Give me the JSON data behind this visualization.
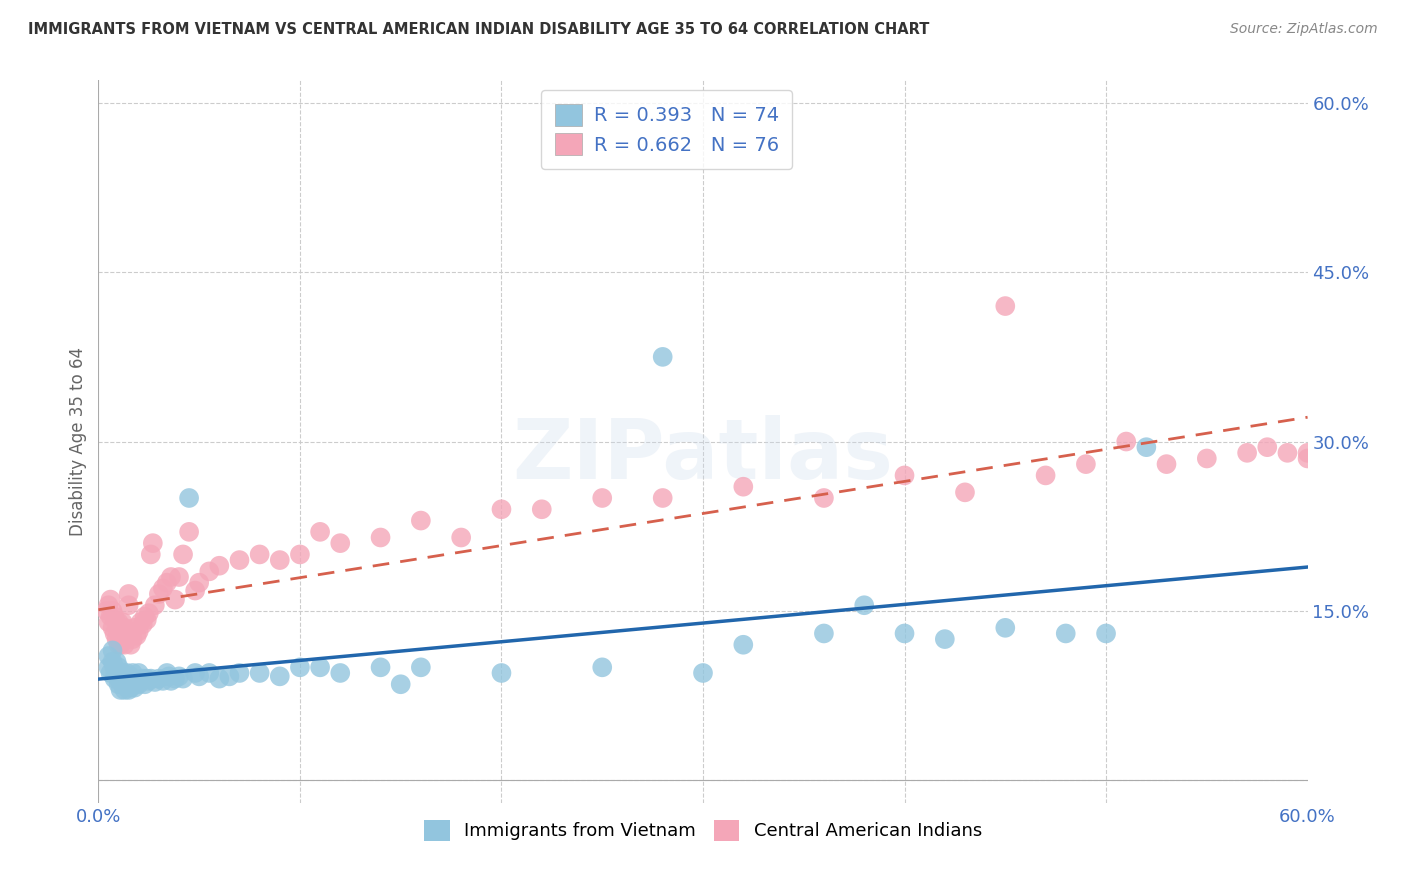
{
  "title": "IMMIGRANTS FROM VIETNAM VS CENTRAL AMERICAN INDIAN DISABILITY AGE 35 TO 64 CORRELATION CHART",
  "source": "Source: ZipAtlas.com",
  "ylabel_label": "Disability Age 35 to 64",
  "xlim": [
    0.0,
    0.6
  ],
  "ylim": [
    -0.02,
    0.62
  ],
  "series1_color": "#92c5de",
  "series2_color": "#f4a6b8",
  "line1_color": "#2166ac",
  "line2_color": "#d6604d",
  "R1": 0.393,
  "N1": 74,
  "R2": 0.662,
  "N2": 76,
  "legend1": "Immigrants from Vietnam",
  "legend2": "Central American Indians",
  "watermark": "ZIPatlas",
  "background_color": "#ffffff",
  "grid_color": "#cccccc",
  "title_color": "#333333",
  "label_color": "#555555",
  "tick_color": "#4472c4",
  "s1_x": [
    0.005,
    0.005,
    0.006,
    0.007,
    0.007,
    0.008,
    0.008,
    0.009,
    0.009,
    0.01,
    0.01,
    0.01,
    0.01,
    0.011,
    0.011,
    0.012,
    0.012,
    0.013,
    0.013,
    0.014,
    0.014,
    0.015,
    0.015,
    0.016,
    0.016,
    0.017,
    0.017,
    0.018,
    0.019,
    0.02,
    0.02,
    0.021,
    0.022,
    0.023,
    0.024,
    0.025,
    0.026,
    0.028,
    0.03,
    0.032,
    0.034,
    0.035,
    0.036,
    0.038,
    0.04,
    0.042,
    0.045,
    0.048,
    0.05,
    0.055,
    0.06,
    0.065,
    0.07,
    0.08,
    0.09,
    0.1,
    0.11,
    0.12,
    0.14,
    0.15,
    0.16,
    0.2,
    0.25,
    0.28,
    0.3,
    0.32,
    0.36,
    0.38,
    0.4,
    0.42,
    0.45,
    0.48,
    0.5,
    0.52
  ],
  "s1_y": [
    0.1,
    0.11,
    0.095,
    0.105,
    0.115,
    0.09,
    0.1,
    0.095,
    0.105,
    0.085,
    0.09,
    0.095,
    0.1,
    0.08,
    0.09,
    0.085,
    0.095,
    0.08,
    0.09,
    0.085,
    0.095,
    0.08,
    0.09,
    0.082,
    0.092,
    0.085,
    0.095,
    0.082,
    0.088,
    0.085,
    0.095,
    0.088,
    0.09,
    0.085,
    0.09,
    0.088,
    0.09,
    0.087,
    0.09,
    0.088,
    0.095,
    0.092,
    0.088,
    0.09,
    0.092,
    0.09,
    0.25,
    0.095,
    0.092,
    0.095,
    0.09,
    0.092,
    0.095,
    0.095,
    0.092,
    0.1,
    0.1,
    0.095,
    0.1,
    0.085,
    0.1,
    0.095,
    0.1,
    0.375,
    0.095,
    0.12,
    0.13,
    0.155,
    0.13,
    0.125,
    0.135,
    0.13,
    0.13,
    0.295
  ],
  "s2_x": [
    0.004,
    0.005,
    0.005,
    0.006,
    0.006,
    0.007,
    0.007,
    0.008,
    0.008,
    0.009,
    0.009,
    0.01,
    0.01,
    0.01,
    0.011,
    0.011,
    0.012,
    0.012,
    0.013,
    0.013,
    0.014,
    0.015,
    0.015,
    0.016,
    0.017,
    0.018,
    0.019,
    0.02,
    0.021,
    0.022,
    0.023,
    0.024,
    0.025,
    0.026,
    0.027,
    0.028,
    0.03,
    0.032,
    0.034,
    0.036,
    0.038,
    0.04,
    0.042,
    0.045,
    0.048,
    0.05,
    0.055,
    0.06,
    0.07,
    0.08,
    0.09,
    0.1,
    0.11,
    0.12,
    0.14,
    0.16,
    0.18,
    0.2,
    0.22,
    0.25,
    0.28,
    0.32,
    0.36,
    0.4,
    0.43,
    0.45,
    0.47,
    0.49,
    0.51,
    0.53,
    0.55,
    0.57,
    0.58,
    0.59,
    0.6,
    0.6
  ],
  "s2_y": [
    0.15,
    0.14,
    0.155,
    0.145,
    0.16,
    0.135,
    0.15,
    0.13,
    0.145,
    0.125,
    0.14,
    0.12,
    0.13,
    0.14,
    0.12,
    0.135,
    0.125,
    0.14,
    0.12,
    0.135,
    0.125,
    0.155,
    0.165,
    0.12,
    0.125,
    0.135,
    0.128,
    0.132,
    0.14,
    0.138,
    0.145,
    0.142,
    0.148,
    0.2,
    0.21,
    0.155,
    0.165,
    0.17,
    0.175,
    0.18,
    0.16,
    0.18,
    0.2,
    0.22,
    0.168,
    0.175,
    0.185,
    0.19,
    0.195,
    0.2,
    0.195,
    0.2,
    0.22,
    0.21,
    0.215,
    0.23,
    0.215,
    0.24,
    0.24,
    0.25,
    0.25,
    0.26,
    0.25,
    0.27,
    0.255,
    0.42,
    0.27,
    0.28,
    0.3,
    0.28,
    0.285,
    0.29,
    0.295,
    0.29,
    0.29,
    0.285
  ]
}
